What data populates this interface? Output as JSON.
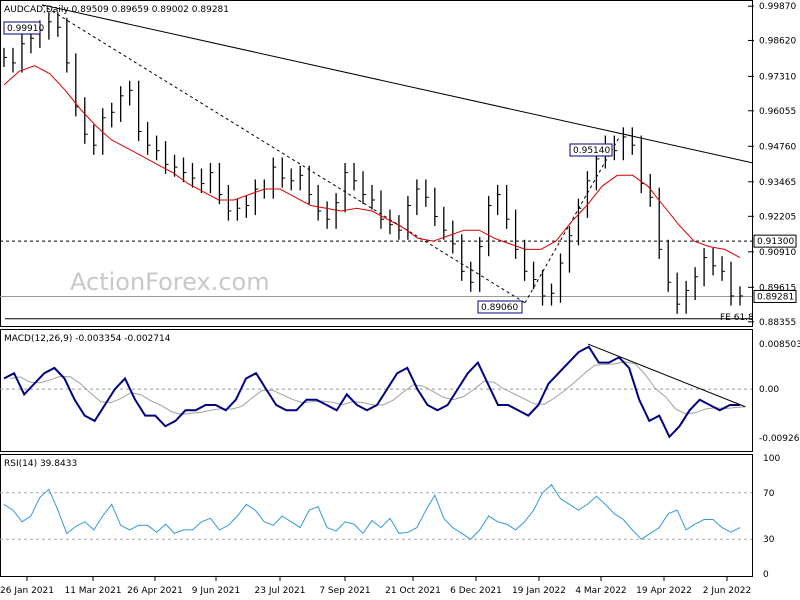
{
  "symbol_header": "AUDCAD,Daily  0.89509 0.89659 0.89002 0.89281",
  "watermark": "ActionForex.com",
  "colors": {
    "price": "#000000",
    "ma": "#dd0000",
    "macd": "#000080",
    "signal": "#a0a0a0",
    "rsi": "#3399dd",
    "box": "#000080"
  },
  "chart_data": [
    {
      "type": "line",
      "panel": "price",
      "y_ticks": [
        "0.99870",
        "0.98620",
        "0.97310",
        "0.96055",
        "0.94760",
        "0.93465",
        "0.92205",
        "0.90910",
        "0.89615",
        "0.88355"
      ],
      "ylim": [
        0.8835,
        0.9995
      ],
      "x_tick_labels": [
        "26 Jan 2021",
        "11 Mar 2021",
        "26 Apr 2021",
        "9 Jun 2021",
        "23 Jul 2021",
        "7 Sep 2021",
        "21 Oct 2021",
        "6 Dec 2021",
        "19 Jan 2022",
        "4 Mar 2022",
        "19 Apr 2022",
        "2 Jun 2022"
      ],
      "series": [
        {
          "name": "AUDCAD",
          "values": [
            0.98,
            0.978,
            0.985,
            0.987,
            0.99,
            0.993,
            0.991,
            0.978,
            0.962,
            0.952,
            0.948,
            0.958,
            0.96,
            0.966,
            0.968,
            0.953,
            0.948,
            0.946,
            0.941,
            0.94,
            0.938,
            0.936,
            0.934,
            0.938,
            0.93,
            0.924,
            0.925,
            0.926,
            0.932,
            0.932,
            0.94,
            0.936,
            0.935,
            0.937,
            0.93,
            0.924,
            0.921,
            0.927,
            0.938,
            0.935,
            0.93,
            0.928,
            0.921,
            0.919,
            0.917,
            0.926,
            0.932,
            0.929,
            0.922,
            0.917,
            0.912,
            0.902,
            0.898,
            0.911,
            0.926,
            0.93,
            0.921,
            0.91,
            0.902,
            0.899,
            0.893,
            0.894,
            0.905,
            0.915,
            0.925,
            0.935,
            0.943,
            0.948,
            0.946,
            0.951,
            0.948,
            0.934,
            0.929,
            0.91,
            0.898,
            0.89,
            0.895,
            0.9,
            0.907,
            0.904,
            0.902,
            0.893,
            0.893
          ]
        },
        {
          "name": "MA",
          "values": [
            0.97,
            0.975,
            0.977,
            0.974,
            0.968,
            0.961,
            0.955,
            0.95,
            0.947,
            0.944,
            0.941,
            0.938,
            0.934,
            0.931,
            0.928,
            0.928,
            0.93,
            0.932,
            0.932,
            0.929,
            0.926,
            0.925,
            0.924,
            0.925,
            0.924,
            0.921,
            0.918,
            0.914,
            0.913,
            0.915,
            0.917,
            0.917,
            0.914,
            0.912,
            0.91,
            0.91,
            0.913,
            0.92,
            0.926,
            0.933,
            0.937,
            0.937,
            0.933,
            0.926,
            0.919,
            0.913,
            0.911,
            0.91,
            0.907
          ]
        }
      ],
      "annotations": [
        {
          "label": "0.99910",
          "value": 0.9991
        },
        {
          "label": "0.95140",
          "value": 0.9514
        },
        {
          "label": "0.89060",
          "value": 0.8906
        },
        {
          "label": "0.91300",
          "value": 0.913
        },
        {
          "label": "0.89281",
          "value": 0.89281
        },
        {
          "label": "FE 61.8",
          "value": 0.8847
        }
      ]
    },
    {
      "type": "line",
      "panel": "macd",
      "title": "MACD(12,26,9) -0.003354 -0.002714",
      "y_ticks": [
        "0.008503",
        "0.00",
        "-0.009262"
      ],
      "ylim": [
        -0.0113,
        0.0104
      ],
      "series": [
        {
          "name": "MACD",
          "values": [
            0.002,
            0.003,
            -0.001,
            0.001,
            0.003,
            0.004,
            0.002,
            -0.002,
            -0.005,
            -0.006,
            -0.003,
            0.0,
            0.002,
            -0.002,
            -0.005,
            -0.005,
            -0.007,
            -0.006,
            -0.004,
            -0.004,
            -0.003,
            -0.003,
            -0.004,
            -0.002,
            0.002,
            0.003,
            0.0,
            -0.003,
            -0.004,
            -0.004,
            -0.002,
            -0.002,
            -0.003,
            -0.004,
            -0.001,
            -0.003,
            -0.004,
            -0.003,
            0.0,
            0.003,
            0.004,
            0.0,
            -0.003,
            -0.004,
            -0.003,
            0.0,
            0.003,
            0.005,
            0.001,
            -0.003,
            -0.003,
            -0.004,
            -0.005,
            -0.003,
            0.001,
            0.003,
            0.005,
            0.007,
            0.008,
            0.005,
            0.005,
            0.006,
            0.004,
            -0.002,
            -0.006,
            -0.005,
            -0.009,
            -0.007,
            -0.004,
            -0.002,
            -0.003,
            -0.004,
            -0.003,
            -0.003
          ]
        }
      ]
    },
    {
      "type": "line",
      "panel": "rsi",
      "title": "RSI(14) 39.8433",
      "y_ticks": [
        "100",
        "70",
        "30",
        "0"
      ],
      "ylim": [
        0,
        100
      ],
      "series": [
        {
          "name": "RSI",
          "values": [
            60,
            55,
            45,
            50,
            66,
            73,
            55,
            35,
            41,
            45,
            38,
            50,
            60,
            42,
            38,
            42,
            42,
            36,
            43,
            35,
            38,
            38,
            45,
            48,
            38,
            42,
            50,
            60,
            55,
            45,
            42,
            50,
            45,
            40,
            55,
            58,
            40,
            37,
            45,
            43,
            35,
            46,
            40,
            48,
            35,
            36,
            40,
            55,
            68,
            48,
            40,
            35,
            30,
            38,
            50,
            45,
            43,
            38,
            45,
            55,
            70,
            77,
            65,
            60,
            55,
            60,
            67,
            60,
            52,
            47,
            38,
            30,
            35,
            40,
            52,
            55,
            38,
            43,
            47,
            47,
            40,
            36,
            40
          ]
        }
      ]
    }
  ]
}
